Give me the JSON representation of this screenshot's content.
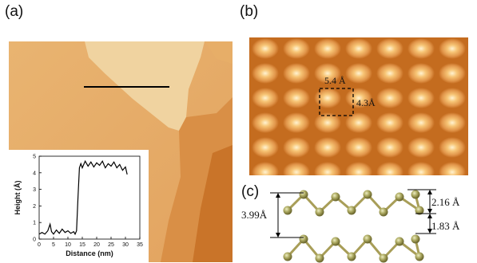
{
  "panels": {
    "a": {
      "label": "(a)"
    },
    "b": {
      "label": "(b)",
      "cell_width_label": "5.4 Å",
      "cell_height_label": "4.3Å"
    },
    "c": {
      "label": "(c)",
      "interlayer_label": "3.99Å",
      "upper_offset_label": "2.16 Å",
      "lower_offset_label": "1.83 Å"
    }
  },
  "colors": {
    "stm_dark": "#c36a1c",
    "stm_mid": "#e2a05a",
    "stm_light": "#f2d7a7",
    "atom": "#a6a35b",
    "bond": "#a89e58",
    "annotation": "#111111"
  },
  "chart_data": {
    "type": "line",
    "xlabel": "Distance (nm)",
    "ylabel": "Height (Å)",
    "xlim": [
      0,
      35
    ],
    "ylim": [
      0,
      5
    ],
    "xticks": [
      0,
      5,
      10,
      15,
      20,
      25,
      30,
      35
    ],
    "yticks": [
      0,
      1,
      2,
      3,
      4,
      5
    ],
    "grid": false,
    "series": [
      {
        "x": [
          0,
          1,
          2,
          3,
          3.8,
          4.3,
          5,
          6,
          7,
          8,
          9,
          10,
          11,
          12,
          12.5,
          13,
          13.5,
          14,
          14.5,
          15,
          16,
          17,
          18,
          19,
          20,
          21,
          22,
          23,
          24,
          25,
          26,
          27,
          28,
          29,
          30,
          30.6
        ],
        "y": [
          0.3,
          0.4,
          0.3,
          0.5,
          0.9,
          0.45,
          0.3,
          0.55,
          0.35,
          0.6,
          0.4,
          0.5,
          0.35,
          0.45,
          0.3,
          0.5,
          2.5,
          4.3,
          4.55,
          4.3,
          4.7,
          4.4,
          4.65,
          4.35,
          4.6,
          4.45,
          4.7,
          4.3,
          4.55,
          4.4,
          4.65,
          4.3,
          4.5,
          4.15,
          4.35,
          3.9
        ]
      }
    ]
  }
}
